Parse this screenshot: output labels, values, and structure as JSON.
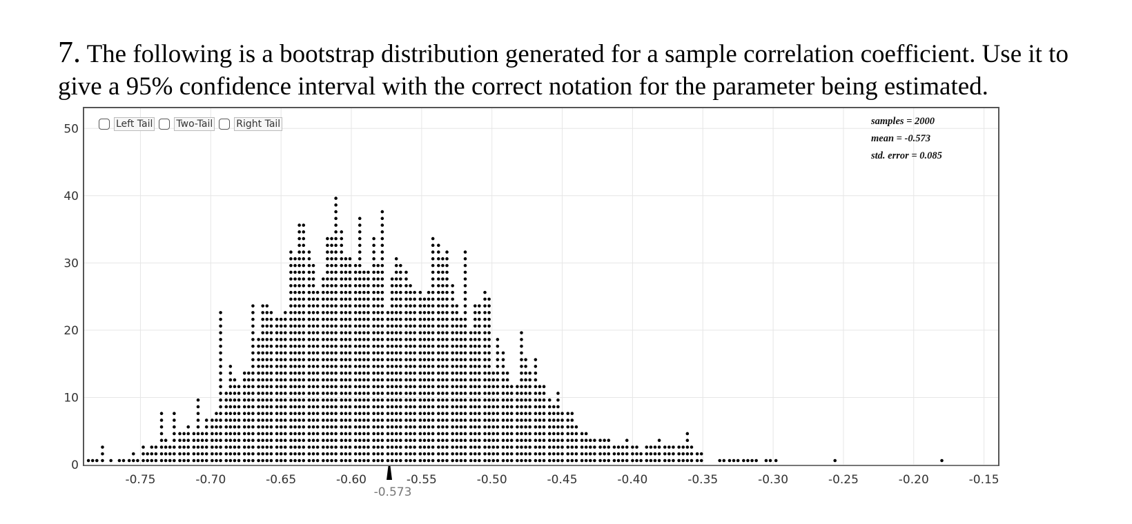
{
  "question": {
    "number": "7.",
    "text": " The following is a bootstrap distribution generated for a sample correlation coefficient.  Use it to give a 95% confidence interval with the correct notation for the parameter being estimated."
  },
  "controls": {
    "left_tail": "Left Tail",
    "two_tail": "Two-Tail",
    "right_tail": "Right Tail"
  },
  "stats": {
    "samples": "samples = 2000",
    "mean": "mean = -0.573",
    "std_error": "std. error = 0.085"
  },
  "mean_marker_label": "-0.573",
  "chart_data": {
    "type": "scatter",
    "subtype": "dotplot",
    "x_ticks": [
      "-0.75",
      "-0.70",
      "-0.65",
      "-0.60",
      "-0.55",
      "-0.50",
      "-0.45",
      "-0.40",
      "-0.35",
      "-0.30",
      "-0.25",
      "-0.20",
      "-0.15"
    ],
    "y_ticks": [
      "0",
      "10",
      "20",
      "30",
      "40",
      "50"
    ],
    "xlim": [
      -0.79,
      -0.14
    ],
    "ylim": [
      0,
      53
    ],
    "grid": true,
    "mean": -0.573,
    "bin_width": 0.0033,
    "x": [
      -0.787,
      -0.784,
      -0.781,
      -0.777,
      -0.771,
      -0.765,
      -0.762,
      -0.758,
      -0.755,
      -0.752,
      -0.748,
      -0.745,
      -0.742,
      -0.739,
      -0.735,
      -0.732,
      -0.729,
      -0.726,
      -0.722,
      -0.719,
      -0.716,
      -0.712,
      -0.709,
      -0.706,
      -0.703,
      -0.699,
      -0.696,
      -0.693,
      -0.689,
      -0.686,
      -0.683,
      -0.68,
      -0.676,
      -0.673,
      -0.67,
      -0.666,
      -0.663,
      -0.66,
      -0.657,
      -0.653,
      -0.65,
      -0.647,
      -0.643,
      -0.64,
      -0.637,
      -0.634,
      -0.63,
      -0.627,
      -0.624,
      -0.62,
      -0.617,
      -0.614,
      -0.611,
      -0.607,
      -0.604,
      -0.601,
      -0.597,
      -0.594,
      -0.591,
      -0.588,
      -0.584,
      -0.581,
      -0.578,
      -0.574,
      -0.571,
      -0.568,
      -0.565,
      -0.561,
      -0.558,
      -0.555,
      -0.551,
      -0.548,
      -0.545,
      -0.542,
      -0.538,
      -0.535,
      -0.532,
      -0.528,
      -0.525,
      -0.522,
      -0.519,
      -0.515,
      -0.512,
      -0.509,
      -0.505,
      -0.502,
      -0.499,
      -0.496,
      -0.492,
      -0.489,
      -0.486,
      -0.482,
      -0.479,
      -0.476,
      -0.473,
      -0.469,
      -0.466,
      -0.463,
      -0.459,
      -0.456,
      -0.453,
      -0.45,
      -0.446,
      -0.443,
      -0.44,
      -0.436,
      -0.433,
      -0.43,
      -0.427,
      -0.423,
      -0.42,
      -0.417,
      -0.413,
      -0.41,
      -0.407,
      -0.404,
      -0.4,
      -0.397,
      -0.394,
      -0.39,
      -0.387,
      -0.384,
      -0.381,
      -0.377,
      -0.374,
      -0.371,
      -0.367,
      -0.364,
      -0.361,
      -0.358,
      -0.354,
      -0.351,
      -0.338,
      -0.335,
      -0.331,
      -0.328,
      -0.325,
      -0.321,
      -0.318,
      -0.315,
      -0.312,
      -0.305,
      -0.302,
      -0.298,
      -0.256,
      -0.18
    ],
    "y": [
      1,
      1,
      1,
      3,
      1,
      1,
      1,
      1,
      2,
      1,
      3,
      2,
      3,
      3,
      8,
      4,
      3,
      8,
      5,
      5,
      6,
      5,
      10,
      5,
      7,
      7,
      8,
      23,
      11,
      15,
      13,
      12,
      14,
      14,
      24,
      19,
      24,
      24,
      23,
      22,
      22,
      23,
      32,
      31,
      36,
      36,
      32,
      30,
      26,
      28,
      34,
      34,
      40,
      35,
      31,
      31,
      30,
      37,
      29,
      29,
      34,
      30,
      38,
      23,
      28,
      31,
      30,
      29,
      27,
      26,
      26,
      25,
      26,
      34,
      33,
      31,
      32,
      27,
      24,
      22,
      32,
      20,
      24,
      24,
      26,
      25,
      14,
      19,
      17,
      14,
      12,
      12,
      20,
      16,
      14,
      16,
      12,
      12,
      10,
      9,
      11,
      8,
      8,
      8,
      6,
      5,
      5,
      4,
      4,
      4,
      4,
      4,
      3,
      3,
      3,
      4,
      3,
      3,
      2,
      3,
      3,
      3,
      4,
      3,
      3,
      3,
      3,
      3,
      5,
      3,
      2,
      2,
      1,
      1,
      1,
      1,
      1,
      1,
      1,
      1,
      1,
      1,
      1,
      1,
      1,
      1
    ]
  }
}
